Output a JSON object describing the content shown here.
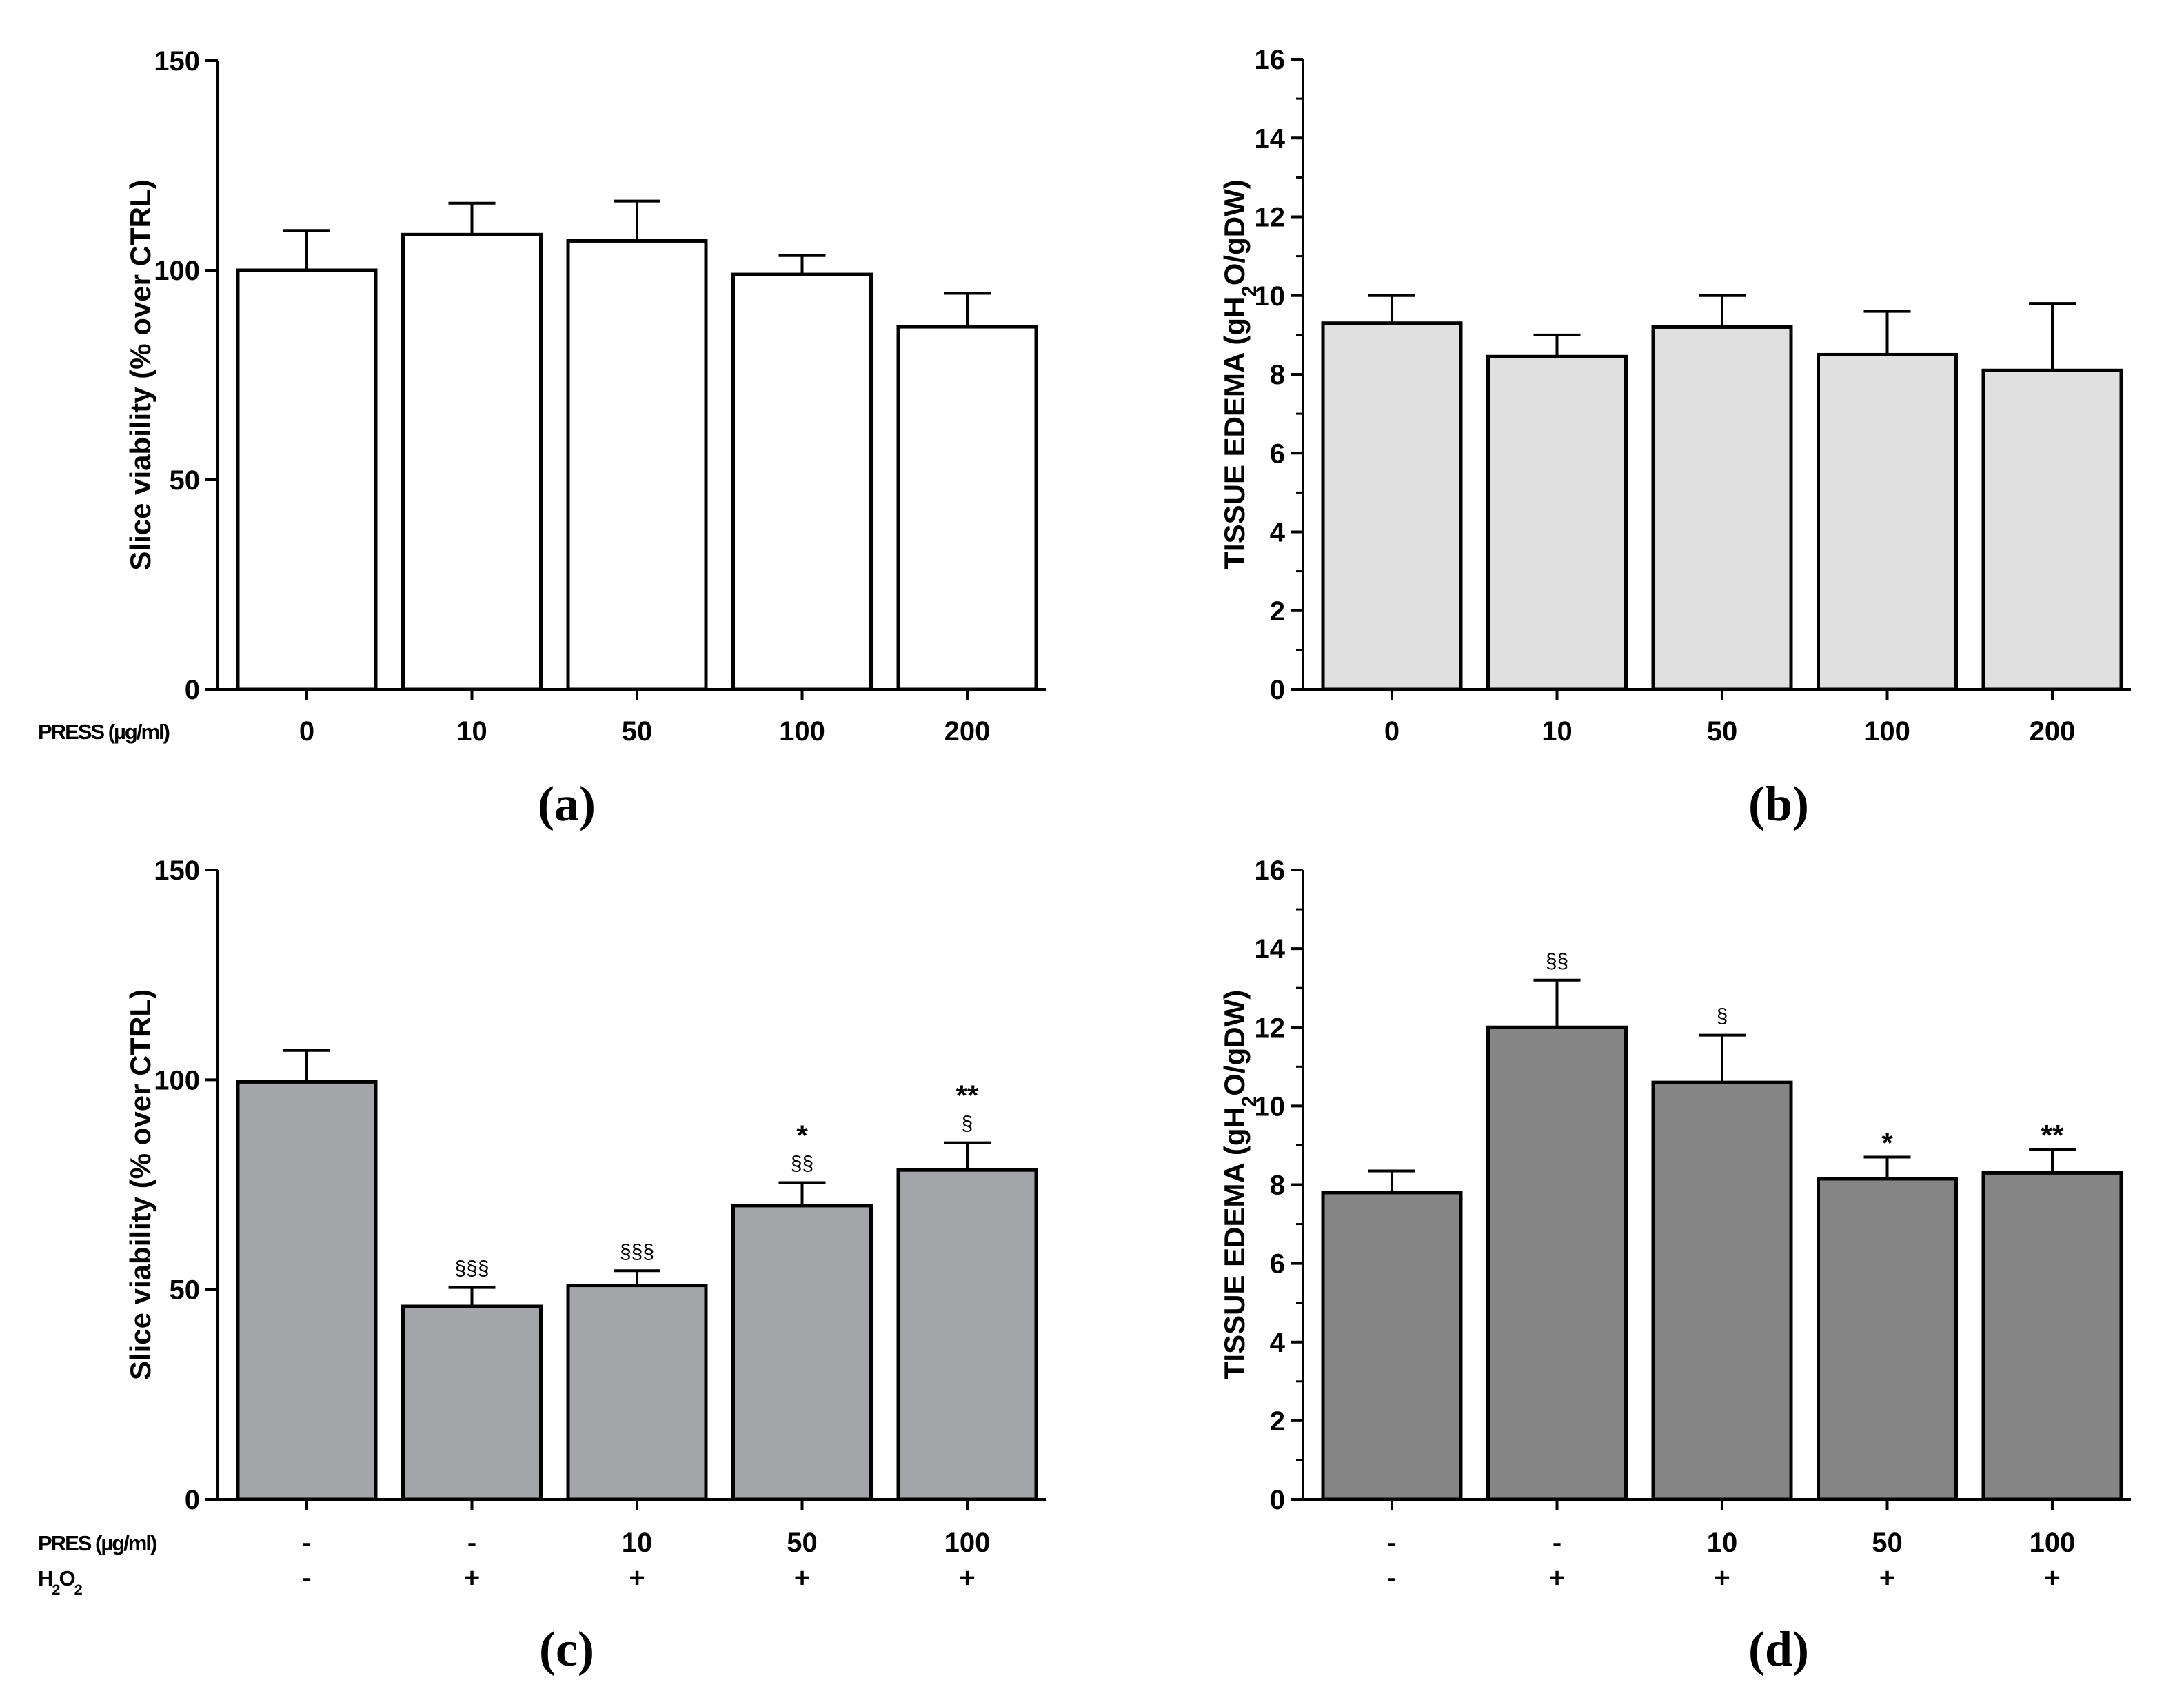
{
  "chart_data": [
    {
      "id": "a",
      "type": "bar",
      "panel_label": "(a)",
      "ylabel": "Slice viability (% over CTRL)",
      "ylim": [
        0,
        150
      ],
      "yticks": [
        0,
        50,
        100,
        150
      ],
      "minor_ticks": false,
      "row_labels": [
        "PRESS (µg/ml)"
      ],
      "categories": [
        [
          "0"
        ],
        [
          "10"
        ],
        [
          "50"
        ],
        [
          "100"
        ],
        [
          "200"
        ]
      ],
      "values": [
        100,
        108.5,
        107,
        99,
        86.5
      ],
      "errors": [
        9.5,
        7.5,
        9.5,
        4.5,
        8
      ],
      "annotations": [
        [],
        [],
        [],
        [],
        []
      ],
      "bar_color": "#ffffff"
    },
    {
      "id": "b",
      "type": "bar",
      "panel_label": "(b)",
      "ylabel": "TISSUE EDEMA  (gH₂O/gDW)",
      "ylim": [
        0,
        16
      ],
      "yticks": [
        0,
        2,
        4,
        6,
        8,
        10,
        12,
        14,
        16
      ],
      "minor_ticks": true,
      "row_labels": [],
      "categories": [
        [
          "0"
        ],
        [
          "10"
        ],
        [
          "50"
        ],
        [
          "100"
        ],
        [
          "200"
        ]
      ],
      "values": [
        9.3,
        8.45,
        9.2,
        8.5,
        8.1
      ],
      "errors": [
        0.7,
        0.55,
        0.8,
        1.1,
        1.7
      ],
      "annotations": [
        [],
        [],
        [],
        [],
        []
      ],
      "bar_color": "#e0e0e0"
    },
    {
      "id": "c",
      "type": "bar",
      "panel_label": "(c)",
      "ylabel": "Slice viability (% over CTRL)",
      "ylim": [
        0,
        150
      ],
      "yticks": [
        0,
        50,
        100,
        150
      ],
      "minor_ticks": false,
      "row_labels": [
        "PRES (µg/ml)",
        "H₂O₂"
      ],
      "categories": [
        [
          "-",
          "-"
        ],
        [
          "-",
          "+"
        ],
        [
          "10",
          "+"
        ],
        [
          "50",
          "+"
        ],
        [
          "100",
          "+"
        ]
      ],
      "values": [
        99.5,
        46,
        51,
        70,
        78.5
      ],
      "errors": [
        7.5,
        4.5,
        3.5,
        5.5,
        6.5
      ],
      "annotations": [
        [],
        [
          "§§§"
        ],
        [
          "§§§"
        ],
        [
          "§§",
          "*"
        ],
        [
          "§",
          "**"
        ]
      ],
      "bar_color": "#a3a5a8"
    },
    {
      "id": "d",
      "type": "bar",
      "panel_label": "(d)",
      "ylabel": "TISSUE EDEMA  (gH₂O/gDW)",
      "ylim": [
        0,
        16
      ],
      "yticks": [
        0,
        2,
        4,
        6,
        8,
        10,
        12,
        14,
        16
      ],
      "minor_ticks": true,
      "row_labels": [],
      "categories": [
        [
          "-",
          "-"
        ],
        [
          "-",
          "+"
        ],
        [
          "10",
          "+"
        ],
        [
          "50",
          "+"
        ],
        [
          "100",
          "+"
        ]
      ],
      "values": [
        7.8,
        12,
        10.6,
        8.15,
        8.3
      ],
      "errors": [
        0.55,
        1.2,
        1.2,
        0.55,
        0.6
      ],
      "annotations": [
        [],
        [
          "§§"
        ],
        [
          "§"
        ],
        [
          "*"
        ],
        [
          "**"
        ]
      ],
      "bar_color": "#858585"
    }
  ]
}
